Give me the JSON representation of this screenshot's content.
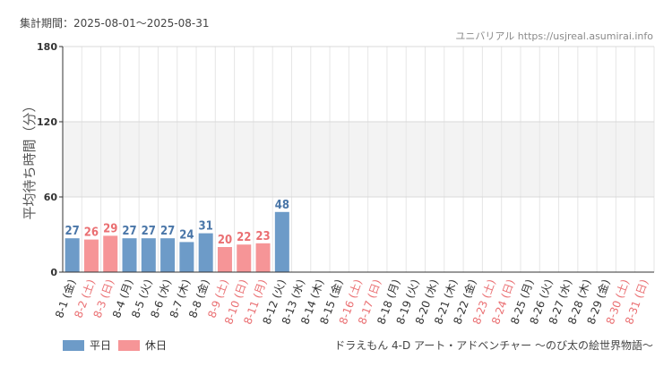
{
  "header": {
    "period": "集計期間：2025-08-01～2025-08-31",
    "credit": "ユニバリアル  https://usjreal.asumirai.info"
  },
  "colors": {
    "weekday": "#6d9bc8",
    "holiday": "#f69597",
    "weekday_text": "#4a76a8",
    "holiday_text": "#ea6f72",
    "band": "#f3f3f3",
    "grid": "#e6e6e6"
  },
  "chart_data": {
    "type": "bar",
    "ylabel": "平均待ち時間（分）",
    "ylim": [
      0,
      180
    ],
    "yticks": [
      0,
      60,
      120,
      180
    ],
    "subtitle": "ドラえもん 4-D アート・アドベンチャー ～のび太の絵世界物語～",
    "legend": [
      {
        "label": "平日",
        "kind": "weekday"
      },
      {
        "label": "休日",
        "kind": "holiday"
      }
    ],
    "categories": [
      "8-1 (金)",
      "8-2 (土)",
      "8-3 (日)",
      "8-4 (月)",
      "8-5 (火)",
      "8-6 (水)",
      "8-7 (木)",
      "8-8 (金)",
      "8-9 (土)",
      "8-10 (日)",
      "8-11 (月)",
      "8-12 (火)",
      "8-13 (水)",
      "8-14 (木)",
      "8-15 (金)",
      "8-16 (土)",
      "8-17 (日)",
      "8-18 (月)",
      "8-19 (火)",
      "8-20 (水)",
      "8-21 (木)",
      "8-22 (金)",
      "8-23 (土)",
      "8-24 (日)",
      "8-25 (月)",
      "8-26 (火)",
      "8-27 (水)",
      "8-28 (木)",
      "8-29 (金)",
      "8-30 (土)",
      "8-31 (日)"
    ],
    "holiday": [
      false,
      true,
      true,
      false,
      false,
      false,
      false,
      false,
      true,
      true,
      true,
      false,
      false,
      false,
      false,
      true,
      true,
      false,
      false,
      false,
      false,
      false,
      true,
      true,
      false,
      false,
      false,
      false,
      false,
      true,
      true
    ],
    "values": [
      27,
      26,
      29,
      27,
      27,
      27,
      24,
      31,
      20,
      22,
      23,
      48,
      null,
      null,
      null,
      null,
      null,
      null,
      null,
      null,
      null,
      null,
      null,
      null,
      null,
      null,
      null,
      null,
      null,
      null,
      null
    ]
  }
}
